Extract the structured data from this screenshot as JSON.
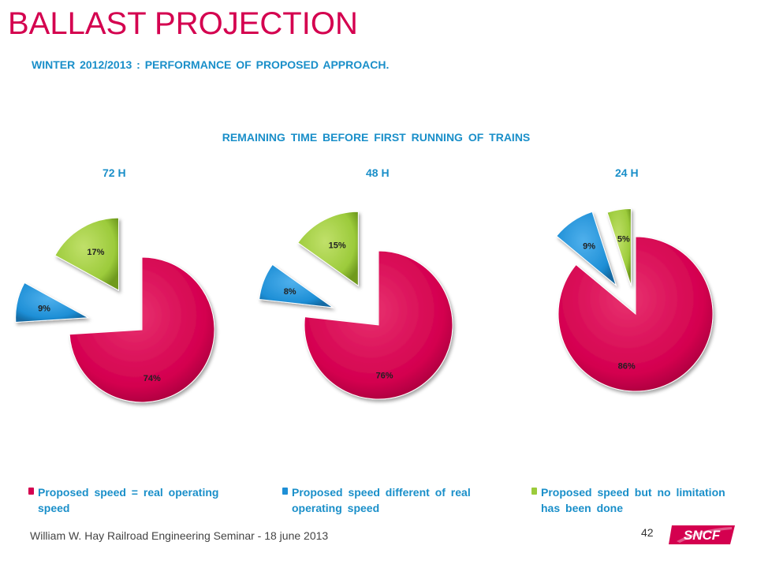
{
  "slide": {
    "title": "BALLAST PROJECTION",
    "subtitle": "WINTER 2012/2013 : PERFORMANCE OF PROPOSED APPROACH.",
    "footer": "William W. Hay Railroad Engineering Seminar - 18 june 2013",
    "page_number": "42",
    "logo_text": "SNCF"
  },
  "legend": {
    "red": "Proposed speed = real operating speed",
    "blue": "Proposed speed different of real operating speed",
    "green": "Proposed speed but no limitation has been done"
  },
  "colors": {
    "red": "#d4004f",
    "blue": "#1e8fd6",
    "green": "#9ccb3b",
    "text_blue": "#1a8fc9"
  },
  "chart_data": {
    "type": "pie",
    "title": "REMAINING TIME BEFORE FIRST RUNNING OF TRAINS",
    "categories": [
      "Proposed speed = real operating speed",
      "Proposed speed different of real operating speed",
      "Proposed speed but no limitation has been done"
    ],
    "pies": [
      {
        "label": "72 H",
        "values": [
          74,
          9,
          17
        ],
        "data_labels": [
          "74%",
          "9%",
          "17%"
        ]
      },
      {
        "label": "48 H",
        "values": [
          76,
          8,
          15
        ],
        "data_labels": [
          "76%",
          "8%",
          "15%"
        ]
      },
      {
        "label": "24 H",
        "values": [
          86,
          9,
          5
        ],
        "data_labels": [
          "86%",
          "9%",
          "5%"
        ]
      }
    ]
  }
}
